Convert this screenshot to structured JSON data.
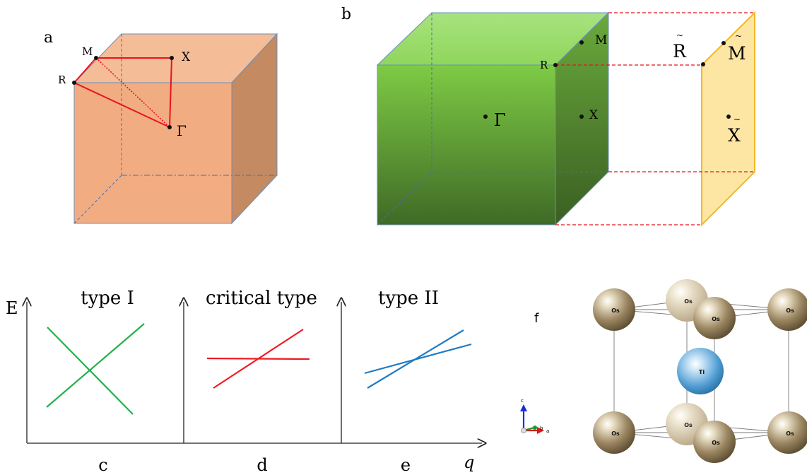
{
  "panels": {
    "a": {
      "label": "a",
      "points": {
        "R": "R",
        "M": "M",
        "X": "X",
        "Gamma": "Γ"
      }
    },
    "b": {
      "label": "b",
      "points": {
        "R": "R",
        "M": "M",
        "X": "X",
        "Gamma": "Γ"
      },
      "projected": {
        "R": "R",
        "M": "M",
        "X": "X",
        "tilde": "~"
      }
    },
    "c": {
      "label": "c",
      "title": "type I",
      "y_axis": "E"
    },
    "d": {
      "label": "d",
      "title": "critical type"
    },
    "e": {
      "label": "e",
      "title": "type II",
      "x_axis": "q"
    },
    "f": {
      "label": "f",
      "atoms": {
        "os": "Os",
        "ti": "Ti"
      },
      "axes": {
        "c": "c",
        "b": "b",
        "a": "a"
      }
    }
  },
  "colors": {
    "cube_a_front": "#f2ac82",
    "cube_a_side": "#c48a62",
    "cube_a_top": "#f4bc97",
    "cube_b_top": "#a6e07a",
    "cube_b_front": "#7fc64a",
    "cube_b_side": "#5e9136",
    "projection_plane": "#fde39a",
    "projection_edge": "#f4b82a",
    "path_red": "#e8141c",
    "type1_green": "#22b14c",
    "critical_red": "#ee1c24",
    "type2_blue": "#1f7bc4",
    "os_atom": "#8a7650",
    "ti_atom": "#4a9ad4"
  }
}
